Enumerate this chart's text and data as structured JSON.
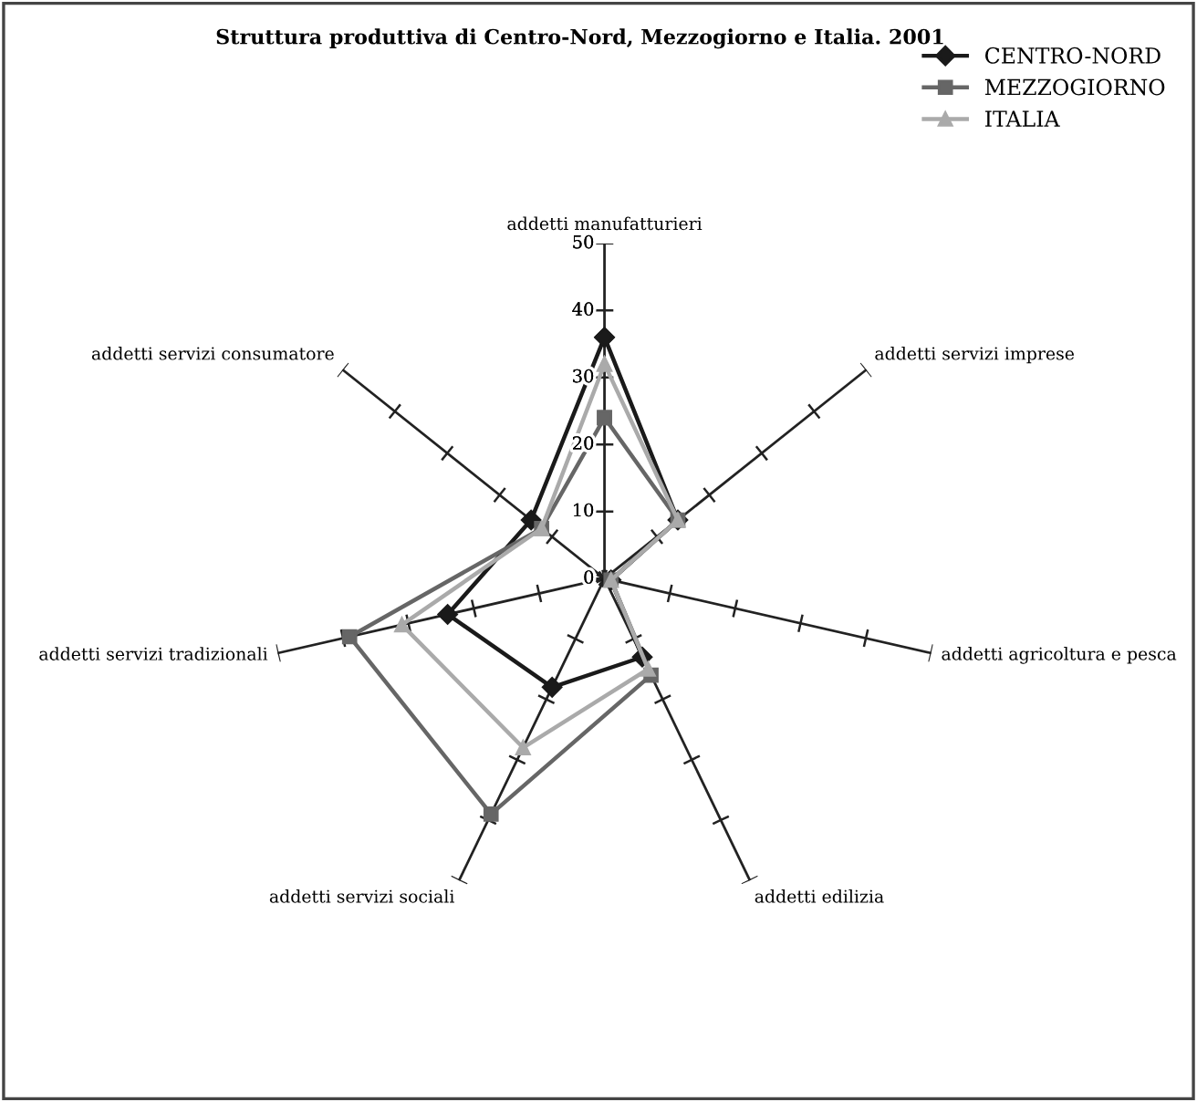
{
  "chart_data": {
    "type": "radar",
    "title": "Struttura produttiva di Centro-Nord, Mezzogiorno e Italia. 2001",
    "categories": [
      "addetti manufatturieri",
      "addetti servizi imprese",
      "addetti agricoltura e pesca",
      "addetti edilizia",
      "addetti servizi sociali",
      "addetti servizi tradizionali",
      "addetti servizi consumatore"
    ],
    "series": [
      {
        "name": "CENTRO-NORD",
        "color": "#1a1a1a",
        "marker": "diamond",
        "values": [
          36,
          14,
          1,
          13,
          18,
          24,
          14
        ]
      },
      {
        "name": "MEZZOGIORNO",
        "color": "#666666",
        "marker": "square",
        "values": [
          24,
          14,
          1,
          16,
          39,
          39,
          12
        ]
      },
      {
        "name": "ITALIA",
        "color": "#aaaaaa",
        "marker": "triangle",
        "values": [
          32,
          14,
          1,
          15,
          28,
          31,
          12
        ]
      }
    ],
    "ylim": [
      0,
      50
    ],
    "yticks": [
      0,
      10,
      20,
      30,
      40,
      50
    ],
    "legend": "top right"
  }
}
